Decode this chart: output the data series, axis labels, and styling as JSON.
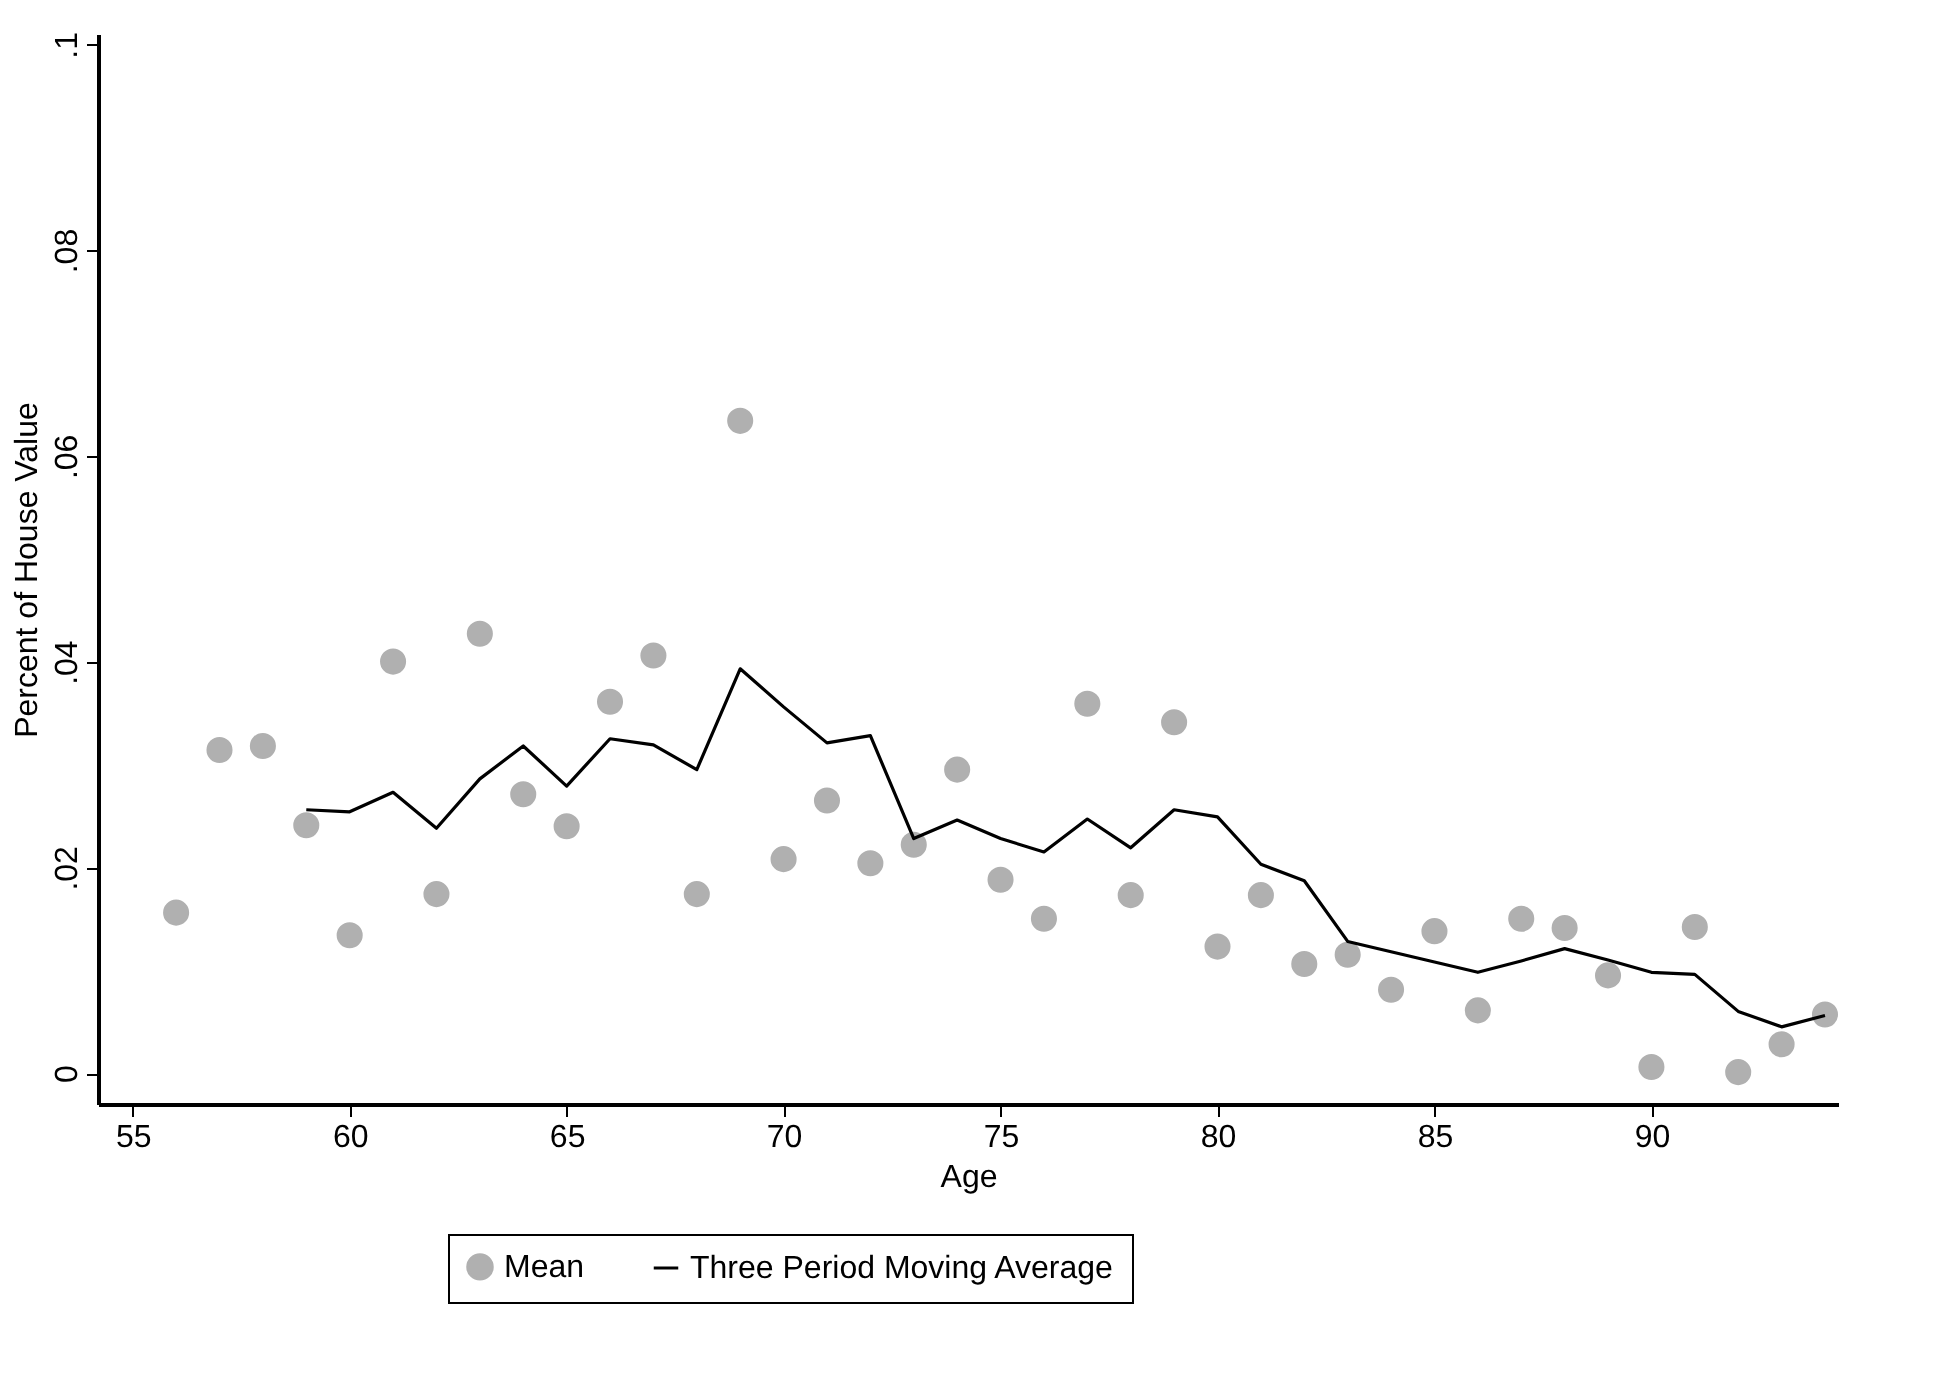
{
  "chart_data": {
    "type": "scatter",
    "xlabel": "Age",
    "ylabel": "Percent of House Value",
    "xlim": [
      54.2,
      94.3
    ],
    "xticks": [
      55,
      60,
      65,
      70,
      75,
      80,
      85,
      90
    ],
    "ylim": [
      -0.003,
      0.101
    ],
    "yticks": [
      {
        "value": 0,
        "label": "0"
      },
      {
        "value": 0.02,
        "label": ".02"
      },
      {
        "value": 0.04,
        "label": ".04"
      },
      {
        "value": 0.06,
        "label": ".06"
      },
      {
        "value": 0.08,
        "label": ".08"
      },
      {
        "value": 0.1,
        "label": ".1"
      }
    ],
    "grid": false,
    "legend": "bottom",
    "series": [
      {
        "name": "Mean",
        "marker": "circle",
        "color": "#b0b0b0",
        "x": [
          56,
          57,
          58,
          59,
          60,
          61,
          62,
          63,
          64,
          65,
          66,
          67,
          68,
          69,
          70,
          71,
          72,
          73,
          74,
          75,
          76,
          77,
          78,
          79,
          80,
          81,
          82,
          83,
          84,
          85,
          86,
          87,
          88,
          89,
          90,
          91,
          92,
          93,
          94
        ],
        "values": [
          0.0156,
          0.0314,
          0.0318,
          0.0241,
          0.0134,
          0.04,
          0.0174,
          0.0427,
          0.0271,
          0.024,
          0.0361,
          0.0406,
          0.0174,
          0.0634,
          0.0208,
          0.0265,
          0.0204,
          0.0222,
          0.0295,
          0.0188,
          0.015,
          0.0359,
          0.0173,
          0.0341,
          0.0123,
          0.0173,
          0.0106,
          0.0115,
          0.0081,
          0.0138,
          0.0061,
          0.015,
          0.0141,
          0.0095,
          0.0006,
          0.0142,
          0.0001,
          0.0028,
          0.0057
        ]
      },
      {
        "name": "Three Period Moving Average",
        "type": "line",
        "line_style": "solid",
        "color": "#000000",
        "x": [
          59,
          60,
          61,
          62,
          63,
          64,
          65,
          66,
          67,
          68,
          69,
          70,
          71,
          72,
          73,
          74,
          75,
          76,
          77,
          78,
          79,
          80,
          81,
          82,
          83,
          84,
          85,
          86,
          87,
          88,
          89,
          90,
          91,
          92,
          93,
          94
        ],
        "values": [
          0.0256,
          0.0254,
          0.0273,
          0.0238,
          0.0286,
          0.0318,
          0.0279,
          0.0325,
          0.0319,
          0.0295,
          0.0393,
          0.0356,
          0.0321,
          0.0328,
          0.0228,
          0.0246,
          0.0228,
          0.0215,
          0.0247,
          0.0219,
          0.0256,
          0.0249,
          0.0203,
          0.0187,
          0.0128,
          0.0118,
          0.0108,
          0.0098,
          0.0109,
          0.0121,
          0.011,
          0.0098,
          0.0096,
          0.006,
          0.0045,
          0.0056
        ]
      }
    ]
  }
}
